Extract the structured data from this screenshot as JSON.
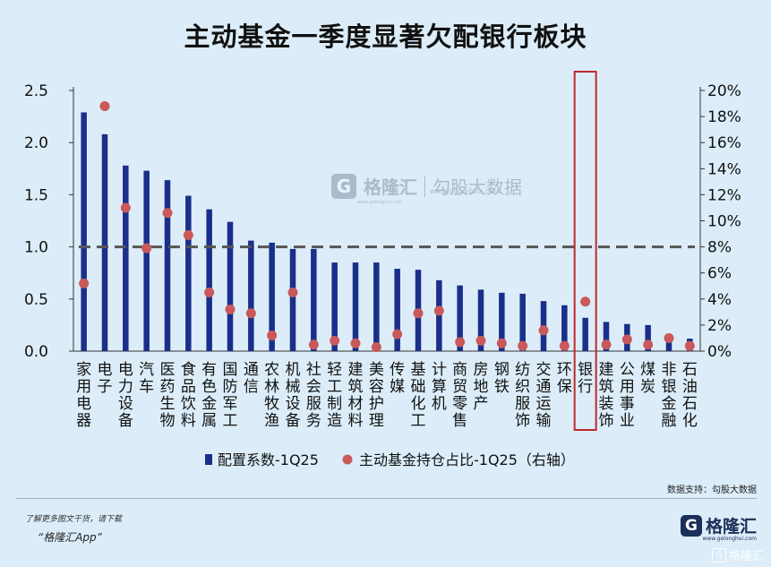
{
  "title": "主动基金一季度显著欠配银行板块",
  "chart_data": {
    "type": "bar",
    "categories": [
      "家用电器",
      "电子",
      "电力设备",
      "汽车",
      "医药生物",
      "食品饮料",
      "有色金属",
      "国防军工",
      "通信",
      "农林牧渔",
      "机械设备",
      "社会服务",
      "轻工制造",
      "建筑材料",
      "美容护理",
      "传媒",
      "基础化工",
      "计算机",
      "商贸零售",
      "房地产",
      "钢铁",
      "纺织服饰",
      "交通运输",
      "环保",
      "银行",
      "建筑装饰",
      "公用事业",
      "煤炭",
      "非银金融",
      "石油石化"
    ],
    "series": [
      {
        "name": "配置系数-1Q25",
        "type": "bar",
        "axis": "left",
        "color": "#1a2f8a",
        "values": [
          2.29,
          2.08,
          1.78,
          1.73,
          1.64,
          1.49,
          1.36,
          1.24,
          1.06,
          1.04,
          0.98,
          0.98,
          0.85,
          0.85,
          0.85,
          0.79,
          0.78,
          0.68,
          0.63,
          0.59,
          0.56,
          0.55,
          0.48,
          0.44,
          0.32,
          0.28,
          0.26,
          0.25,
          0.11,
          0.12
        ]
      },
      {
        "name": "主动基金持仓占比-1Q25（右轴）",
        "type": "scatter",
        "axis": "right",
        "color": "#c9595a",
        "values": [
          5.2,
          18.8,
          11.0,
          7.9,
          10.6,
          8.9,
          4.5,
          3.2,
          2.9,
          1.2,
          4.5,
          0.5,
          0.8,
          0.6,
          0.3,
          1.3,
          2.9,
          3.1,
          0.7,
          0.8,
          0.6,
          0.4,
          1.6,
          0.4,
          3.8,
          0.5,
          0.9,
          0.5,
          1.0,
          0.4
        ]
      }
    ],
    "left_axis": {
      "min": 0,
      "max": 2.5,
      "ticks": [
        "0.0",
        "0.5",
        "1.0",
        "1.5",
        "2.0",
        "2.5"
      ]
    },
    "right_axis": {
      "min": 0,
      "max": 20,
      "ticks": [
        "0%",
        "2%",
        "4%",
        "6%",
        "8%",
        "10%",
        "12%",
        "14%",
        "16%",
        "18%",
        "20%"
      ]
    },
    "reference_line": {
      "value": 1.0,
      "style": "dashed",
      "color": "#555555"
    },
    "highlight": {
      "category": "银行",
      "color": "#c0282d"
    },
    "legend_position": "bottom",
    "grid": false
  },
  "footer": {
    "source": "数据支持：勾股大数据",
    "promo": "了解更多图文干货，请下载",
    "app": "“格隆汇App”",
    "logo_mark": "G",
    "logo_text": "格隆汇",
    "logo_sub": "www.gelonghui.com",
    "bottom_watermark": "格隆汇"
  },
  "watermark": {
    "mark": "G",
    "text": "格隆汇",
    "text2": "勾股大数据",
    "url1": "www.gelonghui.com",
    "url2": "www.gogudata.com"
  }
}
